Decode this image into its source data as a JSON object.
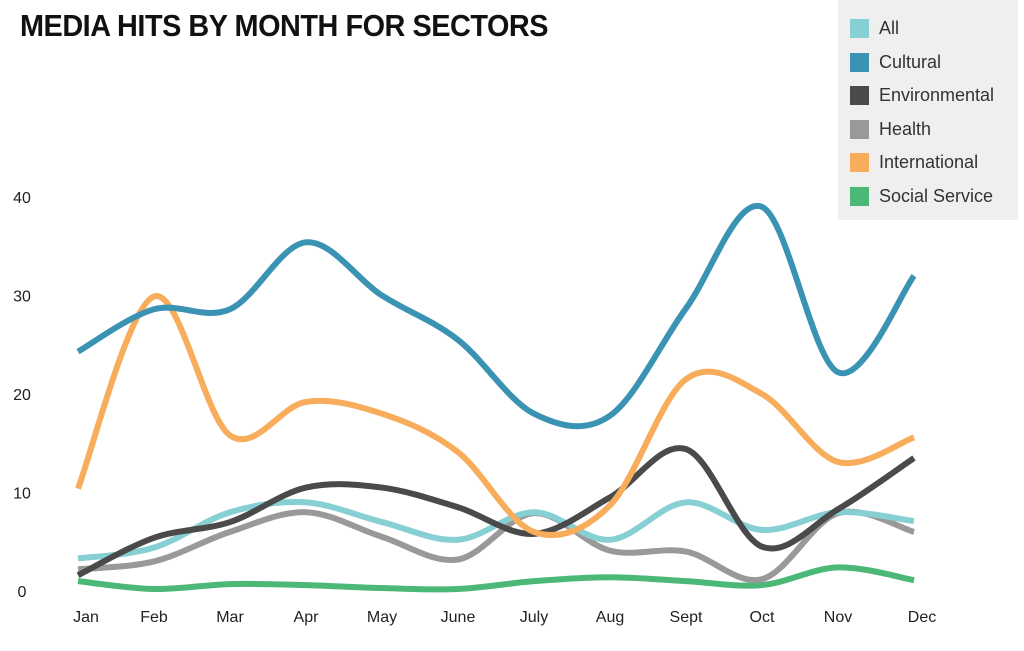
{
  "chart_data": {
    "type": "line",
    "title": "MEDIA HITS BY MONTH FOR SECTORS",
    "xlabel": "",
    "ylabel": "",
    "categories": [
      "Jan",
      "Feb",
      "Mar",
      "Apr",
      "May",
      "June",
      "July",
      "Aug",
      "Sept",
      "Oct",
      "Nov",
      "Dec"
    ],
    "ylim": [
      0,
      40
    ],
    "yticks": [
      "0",
      "10",
      "20",
      "30",
      "40"
    ],
    "grid": false,
    "legend_position": "top-right",
    "series": [
      {
        "name": "All",
        "color": "#86cfd3",
        "values": [
          3.3,
          4.4,
          8,
          9,
          7,
          5.2,
          8,
          5.2,
          9,
          6.2,
          8,
          7.1
        ]
      },
      {
        "name": "Cultural",
        "color": "#3b93b3",
        "values": [
          24.3,
          28.6,
          28.6,
          35.4,
          30,
          25.5,
          18,
          17.8,
          28.7,
          39,
          22.2,
          32
        ]
      },
      {
        "name": "Environmental",
        "color": "#4a4a4a",
        "values": [
          1.6,
          5.4,
          7,
          10.5,
          10.5,
          8.5,
          5.8,
          9.5,
          14.4,
          4.5,
          8.3,
          13.5
        ]
      },
      {
        "name": "Health",
        "color": "#999999",
        "values": [
          2.2,
          3,
          6,
          8,
          5.5,
          3.2,
          7.9,
          4.1,
          4,
          1.2,
          7.9,
          6
        ]
      },
      {
        "name": "International",
        "color": "#f7ad5b",
        "values": [
          10.4,
          29.9,
          15.8,
          19.2,
          18,
          14.1,
          6,
          8.7,
          21.5,
          20,
          13.1,
          15.6
        ]
      },
      {
        "name": "Social Service",
        "color": "#4cb877",
        "values": [
          1,
          0.2,
          0.7,
          0.6,
          0.3,
          0.2,
          1,
          1.4,
          1,
          0.6,
          2.4,
          1.1
        ]
      }
    ]
  }
}
